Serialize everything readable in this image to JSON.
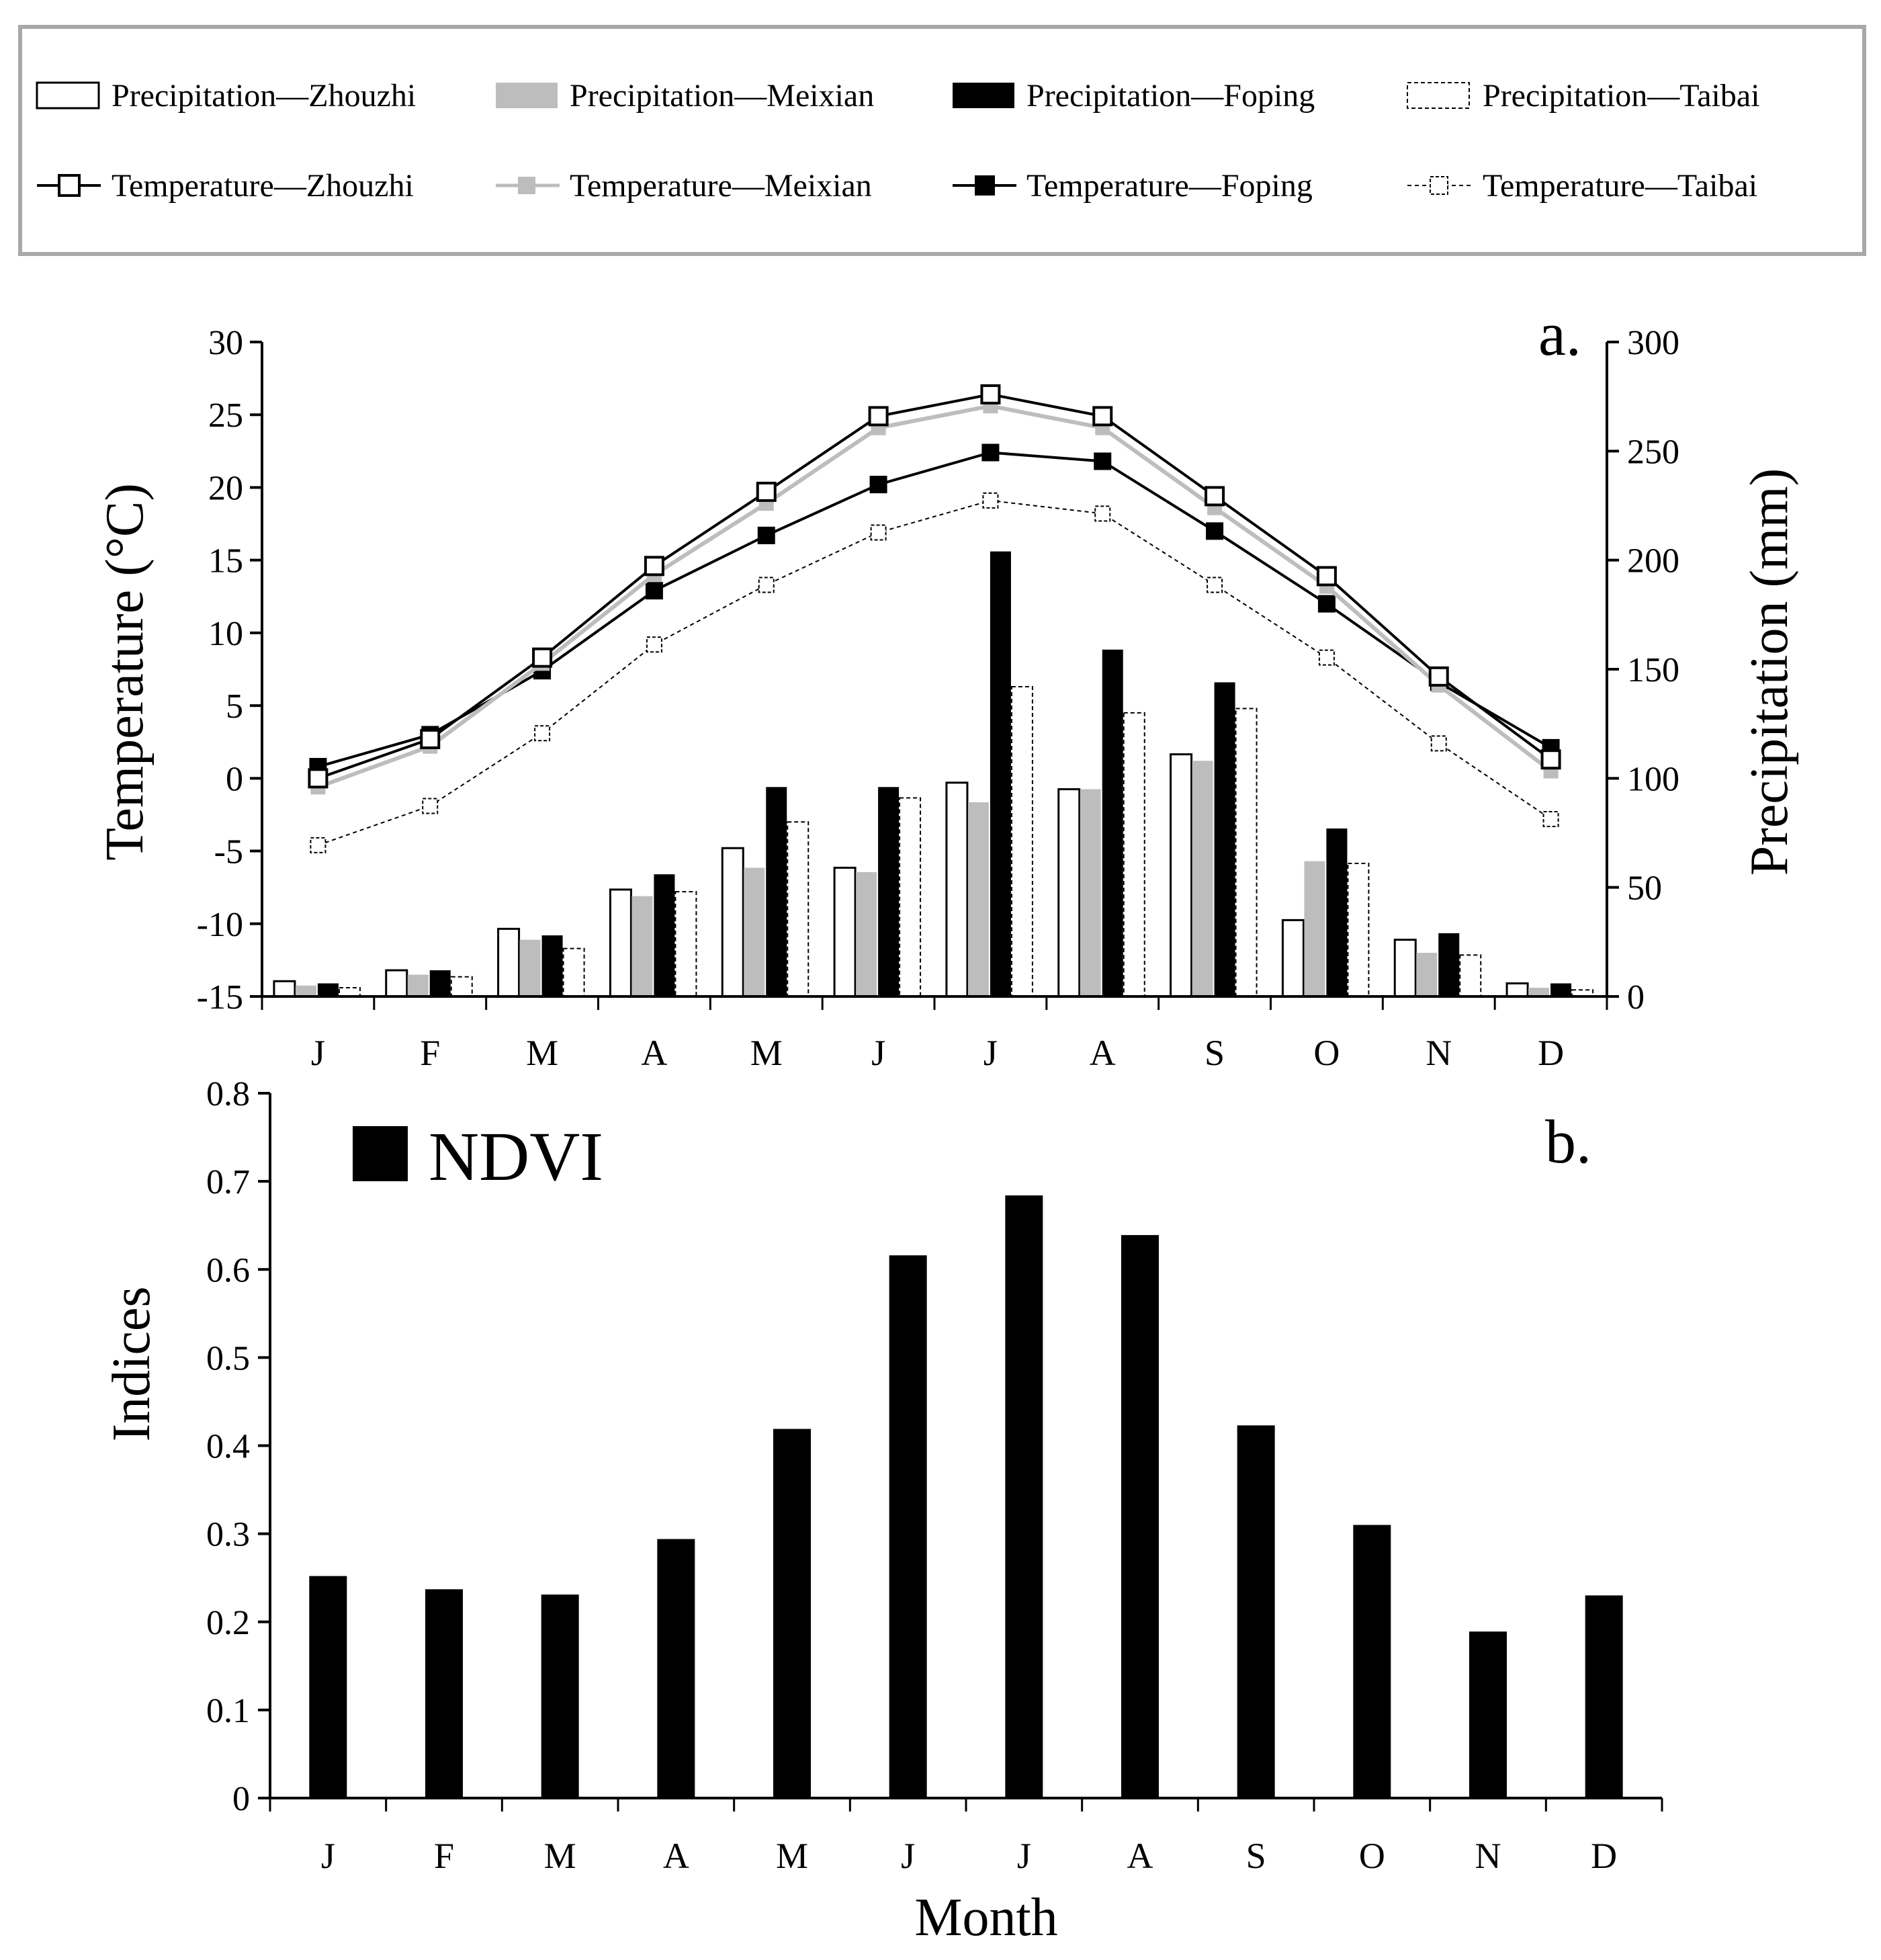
{
  "legend": {
    "precipitation": [
      {
        "label": "Precipitation—Zhouzhi",
        "color": "#ffffff",
        "style": "solid"
      },
      {
        "label": "Precipitation—Meixian",
        "color": "#bdbdbd",
        "style": "solid"
      },
      {
        "label": "Precipitation—Foping",
        "color": "#000000",
        "style": "solid"
      },
      {
        "label": "Precipitation—Taibai",
        "color": "#ffffff",
        "style": "dashed"
      }
    ],
    "temperature": [
      {
        "label": "Temperature—Zhouzhi",
        "color": "#000000",
        "marker": "#ffffff",
        "style": "solid"
      },
      {
        "label": "Temperature—Meixian",
        "color": "#bdbdbd",
        "marker": "#bdbdbd",
        "style": "solid"
      },
      {
        "label": "Temperature—Foping",
        "color": "#000000",
        "marker": "#000000",
        "style": "solid"
      },
      {
        "label": "Temperature—Taibai",
        "color": "#000000",
        "marker": "#ffffff",
        "style": "dashed"
      }
    ]
  },
  "chart_data": [
    {
      "type": "bar+line",
      "panel_label": "a.",
      "categories": [
        "J",
        "F",
        "M",
        "A",
        "M",
        "J",
        "J",
        "A",
        "S",
        "O",
        "N",
        "D"
      ],
      "ylabel_left": "Temperature (°C)",
      "ylabel_right": "Precipitation (mm)",
      "ylim_left": [
        -15,
        30
      ],
      "ylim_right": [
        0,
        300
      ],
      "left_ticks": [
        "30",
        "25",
        "20",
        "15",
        "10",
        "5",
        "0",
        "-5",
        "-10",
        "-15"
      ],
      "right_ticks": [
        "300",
        "250",
        "200",
        "150",
        "100",
        "50",
        "0"
      ],
      "precipitation_series": [
        {
          "name": "Zhouzhi",
          "values": [
            7,
            12,
            31,
            49,
            68,
            59,
            98,
            95,
            111,
            35,
            26,
            6
          ]
        },
        {
          "name": "Meixian",
          "values": [
            5,
            10,
            26,
            46,
            59,
            57,
            89,
            95,
            108,
            62,
            20,
            4
          ]
        },
        {
          "name": "Foping",
          "values": [
            6,
            12,
            28,
            56,
            96,
            96,
            204,
            159,
            144,
            77,
            29,
            6
          ]
        },
        {
          "name": "Taibai",
          "values": [
            4,
            9,
            22,
            48,
            80,
            91,
            142,
            130,
            132,
            61,
            19,
            3
          ]
        }
      ],
      "temperature_series": [
        {
          "name": "Zhouzhi",
          "values": [
            0,
            2.7,
            8.3,
            14.6,
            19.7,
            24.9,
            26.4,
            24.9,
            19.4,
            13.9,
            7,
            1.3
          ]
        },
        {
          "name": "Meixian",
          "values": [
            -0.6,
            2.2,
            7.9,
            14,
            18.9,
            24.1,
            25.6,
            24.1,
            18.6,
            13.2,
            6.4,
            0.5
          ]
        },
        {
          "name": "Foping",
          "values": [
            0.8,
            3,
            7.4,
            12.9,
            16.7,
            20.2,
            22.4,
            21.8,
            17,
            12,
            6.6,
            2.1
          ]
        },
        {
          "name": "Taibai",
          "values": [
            -4.6,
            -1.9,
            3.1,
            9.2,
            13.3,
            16.9,
            19.1,
            18.2,
            13.3,
            8.3,
            2.4,
            -2.8
          ]
        }
      ]
    },
    {
      "type": "bar",
      "panel_label": "b.",
      "legend_label": "NDVI",
      "categories": [
        "J",
        "F",
        "M",
        "A",
        "M",
        "J",
        "J",
        "A",
        "S",
        "O",
        "N",
        "D"
      ],
      "values": [
        0.252,
        0.237,
        0.231,
        0.294,
        0.419,
        0.616,
        0.684,
        0.639,
        0.423,
        0.31,
        0.189,
        0.23
      ],
      "ylabel": "Indices",
      "xlabel": "Month",
      "ylim": [
        0,
        0.8
      ],
      "ticks": [
        "0.8",
        "0.7",
        "0.6",
        "0.5",
        "0.4",
        "0.3",
        "0.2",
        "0.1",
        "0"
      ]
    }
  ]
}
